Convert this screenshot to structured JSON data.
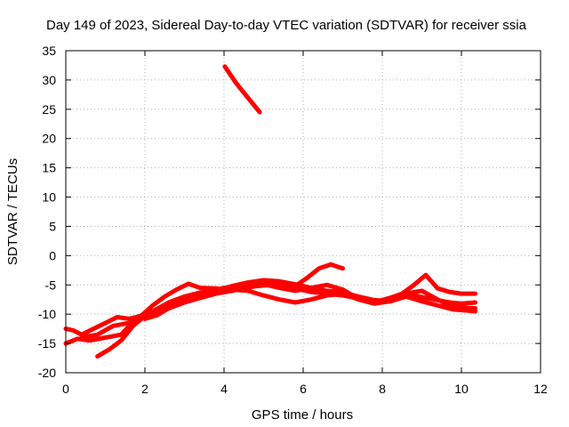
{
  "chart_data": {
    "type": "line",
    "title": "Day 149 of 2023, Sidereal Day-to-day VTEC variation (SDTVAR) for receiver ssia",
    "xlabel": "GPS time / hours",
    "ylabel": "SDTVAR / TECUs",
    "xlim": [
      0,
      12
    ],
    "ylim": [
      -20,
      35
    ],
    "xticks": [
      "0",
      "2",
      "4",
      "6",
      "8",
      "10",
      "12"
    ],
    "yticks": [
      "-20",
      "-15",
      "-10",
      "-5",
      "0",
      "5",
      "10",
      "15",
      "20",
      "25",
      "30",
      "35"
    ],
    "grid": true,
    "series_color": "#ff0000",
    "series": [
      {
        "x": [
          4.02,
          4.3,
          4.6,
          4.9
        ],
        "y": [
          32.3,
          29.5,
          27.0,
          24.5
        ]
      },
      {
        "x": [
          0,
          0.2,
          0.4,
          0.7,
          1.0,
          1.3,
          1.6,
          1.9,
          2.2,
          2.5,
          2.8,
          3.1,
          3.4,
          3.8,
          4.2,
          4.6,
          5.0,
          5.4,
          5.8,
          6.2,
          6.6,
          7.0,
          7.3,
          7.6,
          7.9,
          8.2,
          8.5,
          8.8,
          9.1,
          9.4,
          9.7,
          10.0,
          10.35
        ],
        "y": [
          -12.5,
          -12.8,
          -13.5,
          -12.5,
          -11.5,
          -10.5,
          -10.8,
          -10.3,
          -8.5,
          -7.0,
          -5.8,
          -4.8,
          -5.5,
          -5.6,
          -6.0,
          -5.2,
          -4.9,
          -5.5,
          -6.0,
          -5.5,
          -5.0,
          -5.8,
          -7.0,
          -7.5,
          -7.8,
          -7.2,
          -6.5,
          -6.8,
          -7.2,
          -7.6,
          -8.0,
          -8.2,
          -8.0
        ]
      },
      {
        "x": [
          0,
          0.3,
          0.6,
          1.0,
          1.4,
          1.8,
          2.2,
          2.6,
          3.0,
          3.4,
          3.8,
          4.2,
          4.6,
          5.0,
          5.4,
          5.8,
          6.2,
          6.6,
          7.0,
          7.4,
          7.8,
          8.2,
          8.6,
          9.0,
          9.4,
          9.8,
          10.35
        ],
        "y": [
          -15.0,
          -14.2,
          -14.5,
          -14.0,
          -13.5,
          -10.5,
          -9.5,
          -8.0,
          -7.0,
          -6.3,
          -6.0,
          -5.8,
          -6.0,
          -6.8,
          -7.5,
          -8.0,
          -7.5,
          -6.8,
          -6.5,
          -7.5,
          -8.2,
          -7.8,
          -7.0,
          -7.8,
          -8.5,
          -9.2,
          -9.5
        ]
      },
      {
        "x": [
          0.8,
          1.1,
          1.4,
          1.7,
          2.0,
          2.3,
          2.6,
          3.0,
          3.4,
          3.8,
          4.2,
          4.6,
          5.0,
          5.4,
          5.8,
          6.2,
          6.6,
          7.0,
          7.4,
          7.8,
          8.2,
          8.6,
          9.0,
          9.4,
          9.8,
          10.35
        ],
        "y": [
          -17.2,
          -16.0,
          -14.5,
          -12.0,
          -10.3,
          -9.8,
          -8.8,
          -7.5,
          -6.5,
          -6.0,
          -5.2,
          -4.6,
          -4.2,
          -4.4,
          -4.9,
          -5.5,
          -6.0,
          -6.3,
          -7.0,
          -7.6,
          -7.8,
          -6.5,
          -6.0,
          -7.5,
          -8.8,
          -9.0
        ]
      },
      {
        "x": [
          0.4,
          0.8,
          1.2,
          1.6,
          2.0,
          2.4,
          2.8,
          3.2,
          3.6,
          4.0,
          4.4,
          4.8,
          5.2,
          5.6,
          5.8,
          6.1,
          6.4,
          6.7,
          7.0
        ],
        "y": [
          -14.0,
          -13.5,
          -12.0,
          -11.5,
          -10.0,
          -9.0,
          -8.0,
          -7.0,
          -6.2,
          -5.5,
          -5.8,
          -5.2,
          -5.0,
          -5.5,
          -5.2,
          -3.8,
          -2.2,
          -1.5,
          -2.2
        ]
      },
      {
        "x": [
          2.0,
          2.3,
          2.6,
          3.0,
          3.4,
          3.8,
          4.2,
          4.6,
          5.0,
          5.4,
          5.8,
          6.2,
          6.6,
          7.0,
          7.4,
          7.8,
          8.2,
          8.5,
          8.8,
          9.1,
          9.4,
          9.7,
          10.0,
          10.35
        ],
        "y": [
          -10.8,
          -10.2,
          -9.0,
          -8.0,
          -7.2,
          -6.5,
          -6.0,
          -5.3,
          -4.6,
          -4.9,
          -5.6,
          -6.2,
          -6.5,
          -6.8,
          -7.3,
          -8.0,
          -7.6,
          -6.5,
          -5.0,
          -3.3,
          -5.6,
          -6.2,
          -6.5,
          -6.5
        ]
      }
    ]
  }
}
